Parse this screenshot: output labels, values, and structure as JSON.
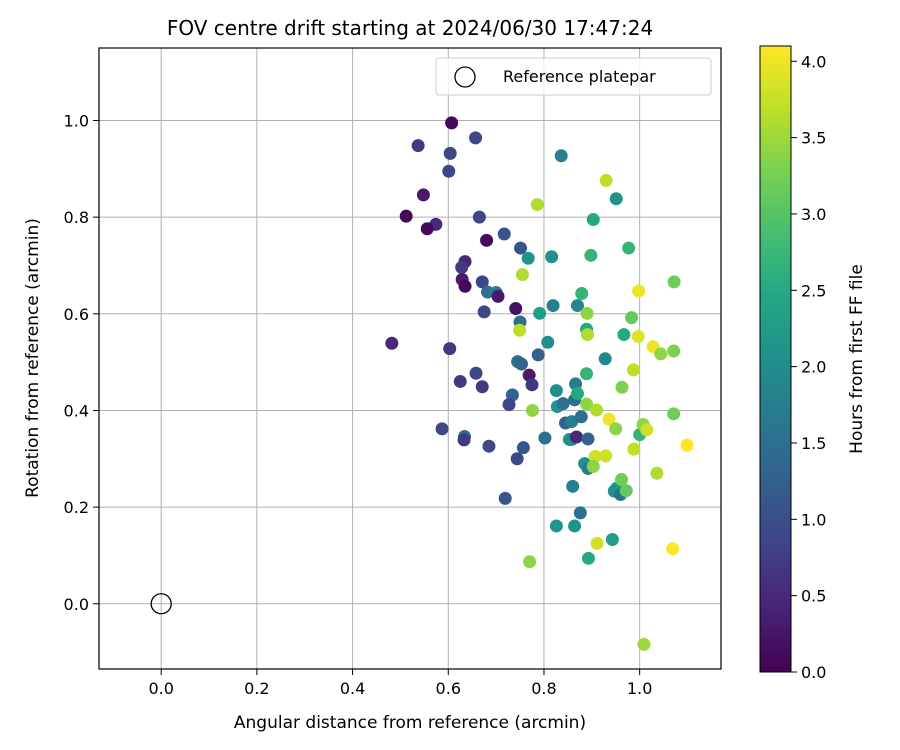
{
  "chart_data": {
    "type": "scatter",
    "title": "FOV centre drift starting at 2024/06/30 17:47:24",
    "xlabel": "Angular distance from reference (arcmin)",
    "ylabel": "Rotation from reference (arcmin)",
    "xlim": [
      -0.13,
      1.17
    ],
    "ylim": [
      -0.135,
      1.15
    ],
    "xticks": [
      0.0,
      0.2,
      0.4,
      0.6,
      0.8,
      1.0
    ],
    "xtick_labels": [
      "0.0",
      "0.2",
      "0.4",
      "0.6",
      "0.8",
      "1.0"
    ],
    "yticks": [
      0.0,
      0.2,
      0.4,
      0.6,
      0.8,
      1.0
    ],
    "ytick_labels": [
      "0.0",
      "0.2",
      "0.4",
      "0.6",
      "0.8",
      "1.0"
    ],
    "grid": true,
    "legend": {
      "position": "upper right",
      "entries": [
        "Reference platepar"
      ]
    },
    "reference_point": {
      "x": 0.0,
      "y": 0.0
    },
    "colorbar": {
      "label": "Hours from first FF file",
      "colormap": "viridis",
      "range": [
        0.0,
        4.1
      ],
      "ticks": [
        0.0,
        0.5,
        1.0,
        1.5,
        2.0,
        2.5,
        3.0,
        3.5,
        4.0
      ],
      "tick_labels": [
        "0.0",
        "0.5",
        "1.0",
        "1.5",
        "2.0",
        "2.5",
        "3.0",
        "3.5",
        "4.0"
      ]
    },
    "series": [
      {
        "points": [
          {
            "x": 0.607,
            "y": 0.995,
            "c": 0.1
          },
          {
            "x": 0.537,
            "y": 0.948,
            "c": 0.7
          },
          {
            "x": 0.604,
            "y": 0.932,
            "c": 0.9
          },
          {
            "x": 0.657,
            "y": 0.964,
            "c": 0.9
          },
          {
            "x": 0.601,
            "y": 0.895,
            "c": 0.9
          },
          {
            "x": 0.548,
            "y": 0.846,
            "c": 0.3
          },
          {
            "x": 0.512,
            "y": 0.802,
            "c": 0.1
          },
          {
            "x": 0.574,
            "y": 0.785,
            "c": 0.5
          },
          {
            "x": 0.556,
            "y": 0.776,
            "c": 0.1
          },
          {
            "x": 0.665,
            "y": 0.8,
            "c": 0.9
          },
          {
            "x": 0.68,
            "y": 0.752,
            "c": 0.1
          },
          {
            "x": 0.717,
            "y": 0.765,
            "c": 1.1
          },
          {
            "x": 0.751,
            "y": 0.736,
            "c": 1.1
          },
          {
            "x": 0.635,
            "y": 0.708,
            "c": 0.5
          },
          {
            "x": 0.628,
            "y": 0.696,
            "c": 0.7
          },
          {
            "x": 0.629,
            "y": 0.671,
            "c": 0.3
          },
          {
            "x": 0.635,
            "y": 0.657,
            "c": 0.1
          },
          {
            "x": 0.671,
            "y": 0.666,
            "c": 0.9
          },
          {
            "x": 0.682,
            "y": 0.645,
            "c": 1.5
          },
          {
            "x": 0.7,
            "y": 0.644,
            "c": 1.7
          },
          {
            "x": 0.704,
            "y": 0.636,
            "c": 0.3
          },
          {
            "x": 0.675,
            "y": 0.604,
            "c": 0.9
          },
          {
            "x": 0.741,
            "y": 0.611,
            "c": 0.2
          },
          {
            "x": 0.75,
            "y": 0.583,
            "c": 1.5
          },
          {
            "x": 0.482,
            "y": 0.539,
            "c": 0.5
          },
          {
            "x": 0.603,
            "y": 0.528,
            "c": 0.7
          },
          {
            "x": 0.658,
            "y": 0.477,
            "c": 0.9
          },
          {
            "x": 0.625,
            "y": 0.46,
            "c": 0.7
          },
          {
            "x": 0.671,
            "y": 0.449,
            "c": 0.7
          },
          {
            "x": 0.745,
            "y": 0.501,
            "c": 1.5
          },
          {
            "x": 0.753,
            "y": 0.496,
            "c": 1.3
          },
          {
            "x": 0.769,
            "y": 0.473,
            "c": 0.3
          },
          {
            "x": 0.775,
            "y": 0.453,
            "c": 0.7
          },
          {
            "x": 0.734,
            "y": 0.432,
            "c": 1.3
          },
          {
            "x": 0.727,
            "y": 0.412,
            "c": 0.9
          },
          {
            "x": 0.788,
            "y": 0.515,
            "c": 1.3
          },
          {
            "x": 0.767,
            "y": 0.715,
            "c": 2.1
          },
          {
            "x": 0.786,
            "y": 0.826,
            "c": 3.6
          },
          {
            "x": 0.755,
            "y": 0.681,
            "c": 3.6
          },
          {
            "x": 0.791,
            "y": 0.601,
            "c": 2.3
          },
          {
            "x": 0.808,
            "y": 0.541,
            "c": 2.0
          },
          {
            "x": 0.816,
            "y": 0.718,
            "c": 2.1
          },
          {
            "x": 0.819,
            "y": 0.617,
            "c": 1.8
          },
          {
            "x": 0.836,
            "y": 0.927,
            "c": 1.8
          },
          {
            "x": 0.749,
            "y": 0.566,
            "c": 3.7
          },
          {
            "x": 0.587,
            "y": 0.362,
            "c": 0.9
          },
          {
            "x": 0.634,
            "y": 0.346,
            "c": 1.5
          },
          {
            "x": 0.633,
            "y": 0.339,
            "c": 0.7
          },
          {
            "x": 0.685,
            "y": 0.326,
            "c": 0.9
          },
          {
            "x": 0.757,
            "y": 0.323,
            "c": 1.1
          },
          {
            "x": 0.744,
            "y": 0.3,
            "c": 0.9
          },
          {
            "x": 0.719,
            "y": 0.218,
            "c": 1.1
          },
          {
            "x": 0.776,
            "y": 0.4,
            "c": 3.4
          },
          {
            "x": 0.802,
            "y": 0.343,
            "c": 1.5
          },
          {
            "x": 0.77,
            "y": 0.087,
            "c": 3.4
          },
          {
            "x": 0.826,
            "y": 0.441,
            "c": 2.0
          },
          {
            "x": 0.828,
            "y": 0.408,
            "c": 2.1
          },
          {
            "x": 0.84,
            "y": 0.414,
            "c": 1.5
          },
          {
            "x": 0.845,
            "y": 0.374,
            "c": 1.3
          },
          {
            "x": 0.858,
            "y": 0.377,
            "c": 1.8
          },
          {
            "x": 0.853,
            "y": 0.34,
            "c": 2.2
          },
          {
            "x": 0.858,
            "y": 0.34,
            "c": 2.0
          },
          {
            "x": 0.868,
            "y": 0.345,
            "c": 0.5
          },
          {
            "x": 0.864,
            "y": 0.422,
            "c": 1.5
          },
          {
            "x": 0.866,
            "y": 0.455,
            "c": 1.7
          },
          {
            "x": 0.87,
            "y": 0.435,
            "c": 2.5
          },
          {
            "x": 0.878,
            "y": 0.387,
            "c": 1.5
          },
          {
            "x": 0.86,
            "y": 0.243,
            "c": 1.8
          },
          {
            "x": 0.826,
            "y": 0.161,
            "c": 2.1
          },
          {
            "x": 0.864,
            "y": 0.161,
            "c": 2.1
          },
          {
            "x": 0.876,
            "y": 0.188,
            "c": 1.5
          },
          {
            "x": 0.885,
            "y": 0.29,
            "c": 2.1
          },
          {
            "x": 0.892,
            "y": 0.28,
            "c": 1.7
          },
          {
            "x": 0.892,
            "y": 0.341,
            "c": 1.3
          },
          {
            "x": 0.889,
            "y": 0.476,
            "c": 2.7
          },
          {
            "x": 0.889,
            "y": 0.413,
            "c": 3.4
          },
          {
            "x": 0.907,
            "y": 0.305,
            "c": 3.8
          },
          {
            "x": 0.903,
            "y": 0.284,
            "c": 3.4
          },
          {
            "x": 0.911,
            "y": 0.125,
            "c": 3.8
          },
          {
            "x": 0.893,
            "y": 0.094,
            "c": 2.5
          },
          {
            "x": 0.87,
            "y": 0.617,
            "c": 1.9
          },
          {
            "x": 0.879,
            "y": 0.642,
            "c": 2.7
          },
          {
            "x": 0.889,
            "y": 0.568,
            "c": 2.5
          },
          {
            "x": 0.891,
            "y": 0.557,
            "c": 3.6
          },
          {
            "x": 0.89,
            "y": 0.601,
            "c": 3.4
          },
          {
            "x": 0.898,
            "y": 0.721,
            "c": 2.7
          },
          {
            "x": 0.903,
            "y": 0.795,
            "c": 2.5
          },
          {
            "x": 0.928,
            "y": 0.507,
            "c": 1.9
          },
          {
            "x": 0.93,
            "y": 0.876,
            "c": 3.7
          },
          {
            "x": 0.951,
            "y": 0.838,
            "c": 2.1
          },
          {
            "x": 0.967,
            "y": 0.557,
            "c": 2.5
          },
          {
            "x": 0.977,
            "y": 0.736,
            "c": 2.7
          },
          {
            "x": 0.983,
            "y": 0.592,
            "c": 3.1
          },
          {
            "x": 0.963,
            "y": 0.448,
            "c": 3.3
          },
          {
            "x": 0.987,
            "y": 0.484,
            "c": 3.7
          },
          {
            "x": 0.997,
            "y": 0.553,
            "c": 3.9
          },
          {
            "x": 0.998,
            "y": 0.647,
            "c": 4.0
          },
          {
            "x": 0.91,
            "y": 0.401,
            "c": 3.6
          },
          {
            "x": 0.936,
            "y": 0.382,
            "c": 4.0
          },
          {
            "x": 0.929,
            "y": 0.306,
            "c": 3.8
          },
          {
            "x": 0.95,
            "y": 0.362,
            "c": 3.4
          },
          {
            "x": 0.947,
            "y": 0.233,
            "c": 2.0
          },
          {
            "x": 0.952,
            "y": 0.239,
            "c": 2.1
          },
          {
            "x": 0.96,
            "y": 0.226,
            "c": 1.6
          },
          {
            "x": 0.962,
            "y": 0.257,
            "c": 3.2
          },
          {
            "x": 0.972,
            "y": 0.234,
            "c": 3.1
          },
          {
            "x": 0.943,
            "y": 0.133,
            "c": 2.3
          },
          {
            "x": 0.988,
            "y": 0.32,
            "c": 3.7
          },
          {
            "x": 1.0,
            "y": 0.35,
            "c": 2.7
          },
          {
            "x": 1.007,
            "y": 0.371,
            "c": 3.4
          },
          {
            "x": 1.015,
            "y": 0.36,
            "c": 3.8
          },
          {
            "x": 1.028,
            "y": 0.532,
            "c": 4.0
          },
          {
            "x": 1.044,
            "y": 0.517,
            "c": 3.4
          },
          {
            "x": 1.071,
            "y": 0.523,
            "c": 3.3
          },
          {
            "x": 1.072,
            "y": 0.666,
            "c": 3.2
          },
          {
            "x": 1.071,
            "y": 0.393,
            "c": 3.2
          },
          {
            "x": 1.036,
            "y": 0.27,
            "c": 3.6
          },
          {
            "x": 1.069,
            "y": 0.114,
            "c": 4.1
          },
          {
            "x": 1.099,
            "y": 0.328,
            "c": 4.1
          },
          {
            "x": 1.009,
            "y": -0.084,
            "c": 3.5
          }
        ]
      }
    ]
  }
}
